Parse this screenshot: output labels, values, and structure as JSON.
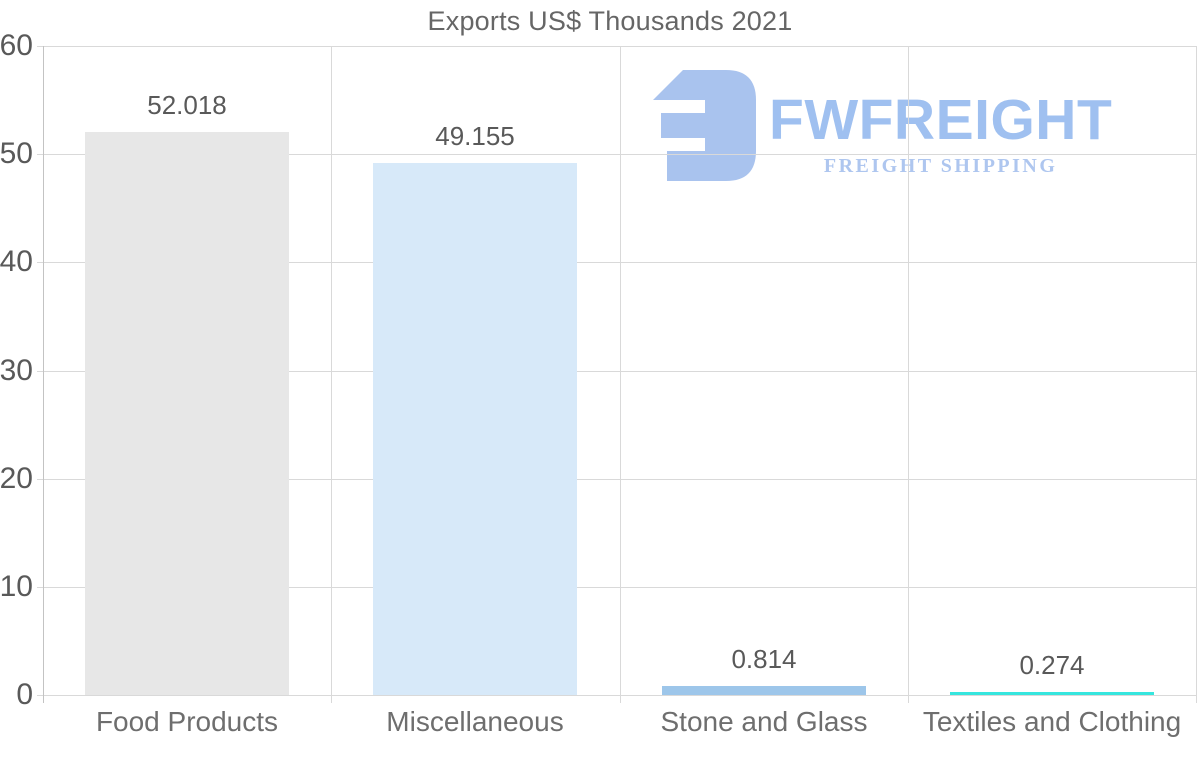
{
  "title": "Exports US$ Thousands 2021",
  "logo": {
    "brand": "FWFREIGHT",
    "tagline": "FREIGHT SHIPPING",
    "icon": "fwfreight-mark",
    "icon_color": "#a9c3ee",
    "brand_color": "#9fc0f0",
    "tagline_color": "#aec6ef"
  },
  "colors": {
    "background": "#ffffff",
    "gridline": "#d9d9d9",
    "axis_line": "#c3c3c3",
    "title_text": "#666666",
    "tick_text": "#595959",
    "value_text": "#595959",
    "category_text": "#6e6e6e"
  },
  "chart_data": {
    "type": "bar",
    "title": "Exports US$ Thousands 2021",
    "categories": [
      "Food Products",
      "Miscellaneous",
      "Stone and Glass",
      "Textiles and Clothing"
    ],
    "values": [
      52.018,
      49.155,
      0.814,
      0.274
    ],
    "value_labels": [
      "52.018",
      "49.155",
      "0.814",
      "0.274"
    ],
    "bar_colors": [
      "#e7e7e7",
      "#d7e9f9",
      "#9dc6ea",
      "#36e6de"
    ],
    "xlabel": "",
    "ylabel": "",
    "ylim": [
      0,
      60
    ],
    "yticks": [
      0,
      10,
      20,
      30,
      40,
      50,
      60
    ],
    "grid": true,
    "legend": false,
    "legend_position": "none"
  }
}
